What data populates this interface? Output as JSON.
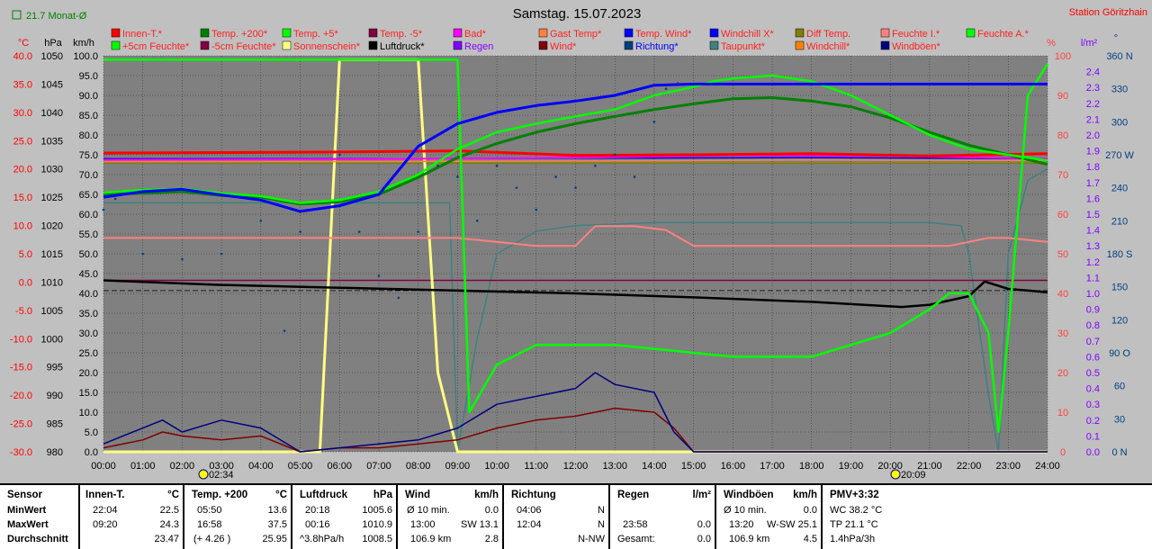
{
  "header": {
    "date_title": "Samstag. 15.07.2023",
    "station": "Station Göritzhain",
    "monthly_avg": "21.7 Monat-Ø"
  },
  "axes": {
    "celsius_unit": "°C",
    "hpa_unit": "hPa",
    "kmh_unit": "km/h",
    "percent_unit": "%",
    "rain_unit": "l/m²",
    "degree_unit": "°",
    "celsius_ticks": [
      "40.0",
      "35.0",
      "30.0",
      "25.0",
      "20.0",
      "15.0",
      "10.0",
      "5.0",
      "0.0",
      "-5.0",
      "-10.0",
      "-15.0",
      "-20.0",
      "-25.0",
      "-30.0"
    ],
    "hpa_ticks": [
      "1050",
      "1045",
      "1040",
      "1035",
      "1030",
      "1025",
      "1020",
      "1015",
      "1010",
      "1005",
      "1000",
      "995",
      "990",
      "985",
      "980"
    ],
    "kmh_ticks": [
      "100.0",
      "95.0",
      "90.0",
      "85.0",
      "80.0",
      "75.0",
      "70.0",
      "65.0",
      "60.0",
      "55.0",
      "50.0",
      "45.0",
      "40.0",
      "35.0",
      "30.0",
      "25.0",
      "20.0",
      "15.0",
      "10.0",
      "5.0",
      "0.0"
    ],
    "percent_ticks": [
      "100",
      "90",
      "80",
      "70",
      "60",
      "50",
      "40",
      "30",
      "20",
      "10",
      "0"
    ],
    "rain_ticks": [
      "2.4",
      "2.3",
      "2.2",
      "2.1",
      "2.0",
      "1.9",
      "1.8",
      "1.7",
      "1.6",
      "1.5",
      "1.4",
      "1.3",
      "1.2",
      "1.1",
      "1.0",
      "0.9",
      "0.8",
      "0.7",
      "0.6",
      "0.5",
      "0.4",
      "0.3",
      "0.2",
      "0.1",
      "0.0"
    ],
    "direction_ticks": [
      "360 N",
      "330",
      "300",
      "270 W",
      "240",
      "210",
      "180 S",
      "150",
      "120",
      "90 O",
      "60",
      "30",
      "0 N"
    ],
    "time_ticks": [
      "00:00",
      "01:00",
      "02:00",
      "03:00",
      "04:00",
      "05:00",
      "06:00",
      "07:00",
      "08:00",
      "09:00",
      "10:00",
      "11:00",
      "12:00",
      "13:00",
      "14:00",
      "15:00",
      "16:00",
      "17:00",
      "18:00",
      "19:00",
      "20:00",
      "21:00",
      "22:00",
      "23:00",
      "24:00"
    ],
    "sunrise": "02:34",
    "sunset": "20:09"
  },
  "legend": [
    {
      "label": "Innen-T.*",
      "color": "#ff0000",
      "text": "#ff2020"
    },
    {
      "label": "Temp. +200*",
      "color": "#008000",
      "text": "#ff2020"
    },
    {
      "label": "Temp. +5*",
      "color": "#00ff00",
      "text": "#ff2020"
    },
    {
      "label": "Temp. -5*",
      "color": "#800040",
      "text": "#ff2020"
    },
    {
      "label": "Bad*",
      "color": "#ff00ff",
      "text": "#ff2020"
    },
    {
      "label": "Gast Temp*",
      "color": "#ff8040",
      "text": "#ff2020"
    },
    {
      "label": "Temp. Wind*",
      "color": "#0000ff",
      "text": "#ff2020"
    },
    {
      "label": "Windchill X*",
      "color": "#0000ff",
      "text": "#ff2020"
    },
    {
      "label": "Diff Temp.",
      "color": "#808000",
      "text": "#ff2020"
    },
    {
      "label": "Feuchte I.*",
      "color": "#ff8080",
      "text": "#ff2020"
    },
    {
      "label": "Feuchte A.*",
      "color": "#00ff00",
      "text": "#ff2020"
    },
    {
      "label": "+5cm Feuchte*",
      "color": "#00ff00",
      "text": "#ff2020"
    },
    {
      "label": "-5cm Feuchte*",
      "color": "#800040",
      "text": "#ff2020"
    },
    {
      "label": "Sonnenschein*",
      "color": "#ffff80",
      "text": "#ff2020"
    },
    {
      "label": "Luftdruck*",
      "color": "#000000",
      "text": "#000000"
    },
    {
      "label": "Regen",
      "color": "#8000ff",
      "text": "#8000ff"
    },
    {
      "label": "Wind*",
      "color": "#800000",
      "text": "#ff2020"
    },
    {
      "label": "Richtung*",
      "color": "#004080",
      "text": "#0000ff"
    },
    {
      "label": "Taupunkt*",
      "color": "#408080",
      "text": "#ff2020"
    },
    {
      "label": "Windchill*",
      "color": "#ff8000",
      "text": "#ff2020"
    },
    {
      "label": "Windböen*",
      "color": "#000080",
      "text": "#ff2020"
    }
  ],
  "chart_data": {
    "type": "line",
    "title": "Samstag. 15.07.2023",
    "x_unit": "hours (00:00–24:00)",
    "xlim": [
      0,
      24
    ],
    "ylim_celsius": [
      -30,
      40
    ],
    "ylim_percent": [
      0,
      100
    ],
    "ylim_kmh": [
      0,
      100
    ],
    "ylim_hpa": [
      980,
      1050
    ],
    "ylim_degrees": [
      0,
      360
    ],
    "grid": true,
    "series": [
      {
        "name": "Innen-T.*",
        "axis": "celsius",
        "color": "#ff0000",
        "x": [
          0,
          3,
          6,
          9,
          12,
          15,
          18,
          21,
          24
        ],
        "y": [
          22.8,
          22.9,
          23.0,
          23.2,
          22.4,
          22.5,
          22.7,
          22.3,
          22.7
        ]
      },
      {
        "name": "Temp. +200*",
        "axis": "celsius",
        "color": "#008000",
        "x": [
          0,
          1,
          2,
          3,
          4,
          5,
          6,
          7,
          8,
          9,
          10,
          11,
          12,
          13,
          14,
          15,
          16,
          17,
          18,
          19,
          20,
          21,
          22,
          23,
          24
        ],
        "y": [
          15.5,
          15.7,
          16.0,
          15.3,
          15.0,
          13.8,
          14.2,
          15.5,
          18.5,
          22.0,
          24.5,
          26.5,
          28.0,
          29.3,
          30.5,
          31.5,
          32.4,
          32.6,
          32.0,
          31.0,
          29.0,
          26.5,
          24.2,
          22.5,
          20.8
        ]
      },
      {
        "name": "Temp. +5*",
        "axis": "celsius",
        "color": "#00ff00",
        "x": [
          0,
          1,
          2,
          3,
          4,
          5,
          6,
          7,
          8,
          9,
          10,
          11,
          12,
          13,
          14,
          15,
          15.5,
          16,
          17,
          18,
          19,
          20,
          21,
          22,
          23,
          24
        ],
        "y": [
          15.8,
          16.3,
          16.5,
          15.7,
          15.2,
          14.0,
          14.5,
          16.0,
          19.0,
          23.5,
          26.5,
          28.0,
          29.3,
          30.5,
          33.0,
          34.5,
          35.5,
          36.0,
          36.5,
          35.5,
          33.0,
          29.5,
          26.0,
          23.5,
          22.5,
          21.5
        ]
      },
      {
        "name": "Temp. Wind*",
        "axis": "celsius",
        "color": "#0000ff",
        "x": [
          0,
          1,
          2,
          3,
          4,
          5,
          6,
          7,
          8,
          9,
          10,
          11,
          12,
          13,
          14,
          15,
          24
        ],
        "y": [
          15.0,
          16.0,
          16.4,
          15.4,
          14.5,
          12.5,
          13.5,
          15.5,
          24.0,
          28.0,
          30.0,
          31.2,
          32.0,
          33.0,
          34.8,
          35.0,
          35.0
        ]
      },
      {
        "name": "Bad*",
        "axis": "celsius",
        "color": "#ff00ff",
        "x": [
          0,
          6,
          12,
          16,
          20,
          24
        ],
        "y": [
          21.6,
          21.7,
          22.0,
          22.4,
          22.3,
          21.8
        ]
      },
      {
        "name": "Gast Temp*",
        "axis": "celsius",
        "color": "#ff8040",
        "x": [
          0,
          6,
          12,
          18,
          24
        ],
        "y": [
          21.3,
          21.3,
          21.4,
          21.6,
          21.5
        ]
      },
      {
        "name": "Windchill X*",
        "axis": "celsius",
        "color": "#0000ff",
        "x": [
          0,
          6,
          12,
          18,
          24
        ],
        "y": [
          21.8,
          21.8,
          21.9,
          22.0,
          21.8
        ]
      },
      {
        "name": "Diff Temp.",
        "axis": "celsius",
        "color": "#808000",
        "x": [
          0,
          24
        ],
        "y": [
          21.0,
          21.0
        ]
      },
      {
        "name": "Temp. -5*",
        "axis": "celsius",
        "color": "#800040",
        "x": [
          0,
          24
        ],
        "y": [
          0.3,
          0.3
        ]
      },
      {
        "name": "Feuchte I.*",
        "axis": "percent",
        "color": "#ff8080",
        "x": [
          0,
          9,
          11,
          12,
          12.5,
          13.5,
          14.3,
          15,
          18,
          21.5,
          22.5,
          23,
          24
        ],
        "y": [
          54,
          54,
          52,
          52,
          57,
          57,
          56,
          52,
          52,
          52,
          54,
          54,
          53
        ]
      },
      {
        "name": "Feuchte A.*",
        "axis": "percent",
        "color": "#00ff00",
        "x": [
          0,
          6,
          7,
          8,
          9,
          9.3,
          10,
          11,
          12,
          13,
          14,
          15,
          16,
          17,
          18,
          19,
          20,
          21,
          21.5,
          22,
          22.5,
          22.75,
          23,
          23.5,
          24
        ],
        "y": [
          99,
          99,
          99,
          99,
          99,
          10,
          22,
          27,
          27,
          27,
          26,
          25,
          24,
          24,
          24,
          27,
          30,
          36,
          40,
          40,
          30,
          5,
          30,
          90,
          98
        ]
      },
      {
        "name": "Sonnenschein*",
        "axis": "percent",
        "color": "#ffff80",
        "x": [
          0,
          5.45,
          5.5,
          6,
          7,
          8,
          8.5,
          9,
          24
        ],
        "y": [
          0,
          0,
          0,
          99,
          99,
          99,
          20,
          0,
          0
        ]
      },
      {
        "name": "Luftdruck*",
        "axis": "hpa",
        "color": "#000000",
        "x": [
          0,
          3,
          6,
          9,
          12,
          15,
          18,
          20.3,
          21,
          22,
          22.4,
          23,
          24
        ],
        "y": [
          1010.3,
          1009.5,
          1009.0,
          1008.5,
          1008.0,
          1007.3,
          1006.5,
          1005.6,
          1006.0,
          1007.5,
          1010.1,
          1008.8,
          1008.2
        ]
      },
      {
        "name": "Wind*",
        "axis": "kmh",
        "color": "#800000",
        "x": [
          0,
          1,
          1.5,
          2,
          3,
          4,
          5,
          6,
          7,
          8,
          9,
          10,
          11,
          12,
          13,
          14,
          14.5,
          15,
          24
        ],
        "y": [
          1,
          3,
          5,
          4,
          3,
          4,
          0,
          1,
          1,
          2,
          3,
          6,
          8,
          9,
          11,
          10,
          6,
          0,
          0
        ]
      },
      {
        "name": "Windböen*",
        "axis": "kmh",
        "color": "#000080",
        "x": [
          0,
          1,
          1.5,
          2,
          3,
          4,
          5,
          6,
          7,
          8,
          9,
          10,
          11,
          12,
          12.5,
          13,
          14,
          14.5,
          15,
          24
        ],
        "y": [
          2,
          6,
          8,
          5,
          8,
          6,
          0,
          1,
          2,
          3,
          6,
          12,
          14,
          16,
          20,
          17,
          15,
          5,
          0,
          0
        ]
      },
      {
        "name": "Richtung*",
        "axis": "degrees",
        "color": "#004080",
        "points": [
          [
            0,
            220
          ],
          [
            0.3,
            230
          ],
          [
            1,
            180
          ],
          [
            2,
            175
          ],
          [
            3,
            180
          ],
          [
            4,
            210
          ],
          [
            4.6,
            110
          ],
          [
            5,
            200
          ],
          [
            6,
            270
          ],
          [
            6.5,
            200
          ],
          [
            7,
            160
          ],
          [
            7.5,
            140
          ],
          [
            8,
            200
          ],
          [
            8.5,
            260
          ],
          [
            9,
            250
          ],
          [
            9.5,
            210
          ],
          [
            10,
            260
          ],
          [
            10.5,
            240
          ],
          [
            11,
            220
          ],
          [
            11.5,
            250
          ],
          [
            12,
            240
          ],
          [
            12.5,
            260
          ],
          [
            13,
            270
          ],
          [
            13.5,
            250
          ],
          [
            14,
            300
          ],
          [
            14.3,
            330
          ],
          [
            14.6,
            335
          ]
        ]
      },
      {
        "name": "Taupunkt*",
        "axis": "celsius",
        "color": "#408080",
        "x": [
          0,
          8.8,
          9,
          9.5,
          10,
          11,
          12,
          14,
          16,
          18,
          20,
          21,
          21.8,
          22,
          22.5,
          22.75,
          23,
          23.5,
          24
        ],
        "y": [
          14,
          14,
          -30,
          -10,
          5,
          9,
          10,
          10.5,
          10.5,
          10.5,
          10.5,
          10.5,
          10,
          5,
          -20,
          -30,
          5,
          18,
          20
        ]
      }
    ]
  },
  "stats": {
    "sensor": {
      "title": "Sensor",
      "rows": [
        "MinWert",
        "MaxWert",
        "Durchschnitt"
      ]
    },
    "innen": {
      "title": "Innen-T.",
      "unit": "°C",
      "times": [
        "22:04",
        "09:20",
        ""
      ],
      "values": [
        "22.5",
        "24.3",
        "23.47"
      ]
    },
    "temp": {
      "title": "Temp. +200",
      "unit": "°C",
      "times": [
        "05:50",
        "16:58",
        "(+ 4.26 )"
      ],
      "values": [
        "13.6",
        "37.5",
        "25.95"
      ]
    },
    "luft": {
      "title": "Luftdruck",
      "unit": "hPa",
      "times": [
        "20:18",
        "00:16",
        "^3.8hPa/h"
      ],
      "values": [
        "1005.6",
        "1010.9",
        "1008.5"
      ]
    },
    "wind": {
      "title": "Wind",
      "unit": "km/h",
      "times": [
        "Ø 10 min.",
        "13:00",
        "106.9 km"
      ],
      "dirs": [
        "",
        "SW",
        ""
      ],
      "values": [
        "0.0",
        "13.1",
        "2.8"
      ]
    },
    "richtung": {
      "title": "Richtung",
      "times": [
        "04:06",
        "12:04",
        ""
      ],
      "values": [
        "N",
        "N",
        "N-NW"
      ]
    },
    "regen": {
      "title": "Regen",
      "unit": "l/m²",
      "times": [
        "",
        "23:58",
        "Gesamt:"
      ],
      "values": [
        "",
        "0.0",
        "0.0"
      ]
    },
    "boen": {
      "title": "Windböen",
      "unit": "km/h",
      "times": [
        "Ø 10 min.",
        "13:20",
        "106.9 km"
      ],
      "dirs": [
        "",
        "W-SW",
        ""
      ],
      "values": [
        "0.0",
        "25.1",
        "4.5"
      ]
    },
    "pmv": {
      "title": "PMV+3:32",
      "rows": [
        "WC 38.2 °C",
        "TP 21.1 °C",
        "1.4hPa/3h"
      ]
    }
  }
}
